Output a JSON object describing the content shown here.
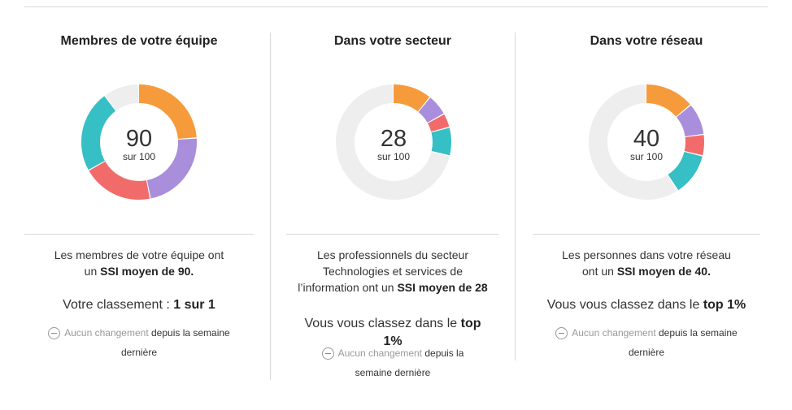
{
  "colors": {
    "orange": "#F69B3C",
    "purple": "#A98EDC",
    "red": "#F26B6B",
    "teal": "#36BFC4",
    "gray": "#EEEEEE"
  },
  "columns": [
    {
      "title": "Membres de votre équipe",
      "score": "90",
      "score_sub": "sur 100",
      "segments": [
        {
          "color": "orange",
          "value": 24
        },
        {
          "color": "purple",
          "value": 23
        },
        {
          "color": "red",
          "value": 20
        },
        {
          "color": "teal",
          "value": 23
        },
        {
          "color": "gray",
          "value": 10
        }
      ],
      "desc_pre": "Les membres de votre équipe ont un",
      "desc_bold": "SSI moyen de 90.",
      "rank_pre": "Votre classement :",
      "rank_bold": "1 sur 1",
      "change_muted": "Aucun changement",
      "change_text": "depuis la semaine dernière"
    },
    {
      "title": "Dans votre secteur",
      "score": "28",
      "score_sub": "sur 100",
      "segments": [
        {
          "color": "orange",
          "value": 11
        },
        {
          "color": "purple",
          "value": 6
        },
        {
          "color": "red",
          "value": 4
        },
        {
          "color": "teal",
          "value": 8
        },
        {
          "color": "gray",
          "value": 71
        }
      ],
      "desc_pre": "Les professionnels du secteur Technologies et services de l’information ont un",
      "desc_bold": "SSI moyen de 28",
      "rank_pre": "Vous vous classez dans le",
      "rank_bold": "top 1%",
      "change_muted": "Aucun changement",
      "change_text": "depuis la semaine dernière"
    },
    {
      "title": "Dans votre réseau",
      "score": "40",
      "score_sub": "sur 100",
      "segments": [
        {
          "color": "orange",
          "value": 14
        },
        {
          "color": "purple",
          "value": 9
        },
        {
          "color": "red",
          "value": 6
        },
        {
          "color": "teal",
          "value": 12
        },
        {
          "color": "gray",
          "value": 59
        }
      ],
      "desc_pre": "Les personnes dans votre réseau ont un",
      "desc_bold": "SSI moyen de 40.",
      "rank_pre": "Vous vous classez dans le",
      "rank_bold": "top 1%",
      "change_muted": "Aucun changement",
      "change_text": "depuis la semaine dernière"
    }
  ]
}
